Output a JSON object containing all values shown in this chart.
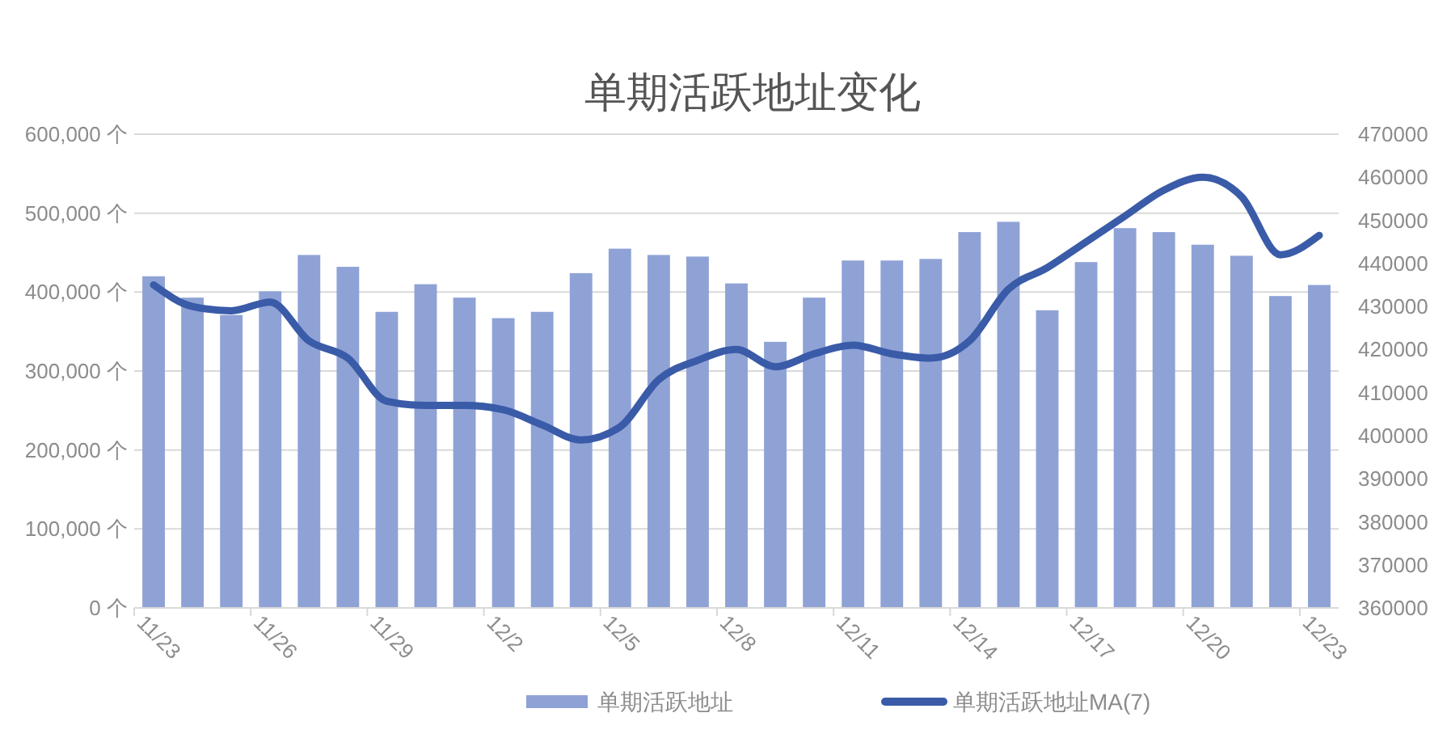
{
  "chart_data": {
    "type": "bar",
    "title": "单期活跃地址变化",
    "categories": [
      "11/23",
      null,
      null,
      "11/26",
      null,
      null,
      "11/29",
      null,
      null,
      "12/2",
      null,
      null,
      "12/5",
      null,
      null,
      "12/8",
      null,
      null,
      "12/11",
      null,
      null,
      "12/14",
      null,
      null,
      "12/17",
      null,
      null,
      "12/20",
      null,
      null,
      "12/23"
    ],
    "series": [
      {
        "name": "单期活跃地址",
        "color": "#8fa2d6",
        "values": [
          420000,
          393000,
          371000,
          401000,
          447000,
          432000,
          375000,
          410000,
          393000,
          367000,
          375000,
          424000,
          455000,
          447000,
          445000,
          411000,
          337000,
          393000,
          440000,
          440000,
          442000,
          476000,
          489000,
          377000,
          438000,
          481000,
          476000,
          460000,
          446000,
          395000,
          409000
        ]
      },
      {
        "name": "单期活跃地址MA(7)",
        "type": "line",
        "axis": "y2",
        "color": "#3a5ba8",
        "values": [
          435000,
          430000,
          429000,
          431000,
          422000,
          418000,
          408000,
          407000,
          407000,
          406000,
          402500,
          399000,
          402000,
          413000,
          417500,
          420000,
          416000,
          419000,
          421000,
          419000,
          418000,
          422000,
          434000,
          439000,
          445000,
          451000,
          457000,
          460000,
          455500,
          442000,
          446500
        ]
      }
    ],
    "ylim": [
      0,
      600000
    ],
    "yticks": [
      {
        "value": 0,
        "label": "0 个"
      },
      {
        "value": 100000,
        "label": "100,000 个"
      },
      {
        "value": 200000,
        "label": "200,000 个"
      },
      {
        "value": 300000,
        "label": "300,000 个"
      },
      {
        "value": 400000,
        "label": "400,000 个"
      },
      {
        "value": 500000,
        "label": "500,000 个"
      },
      {
        "value": 600000,
        "label": "600,000 个"
      }
    ],
    "y2lim": [
      360000,
      470000
    ],
    "y2ticks": [
      360000,
      370000,
      380000,
      390000,
      400000,
      410000,
      420000,
      430000,
      440000,
      450000,
      460000,
      470000
    ],
    "grid": "y",
    "legend": "bottom",
    "marker": "none",
    "line_style": "solid"
  }
}
